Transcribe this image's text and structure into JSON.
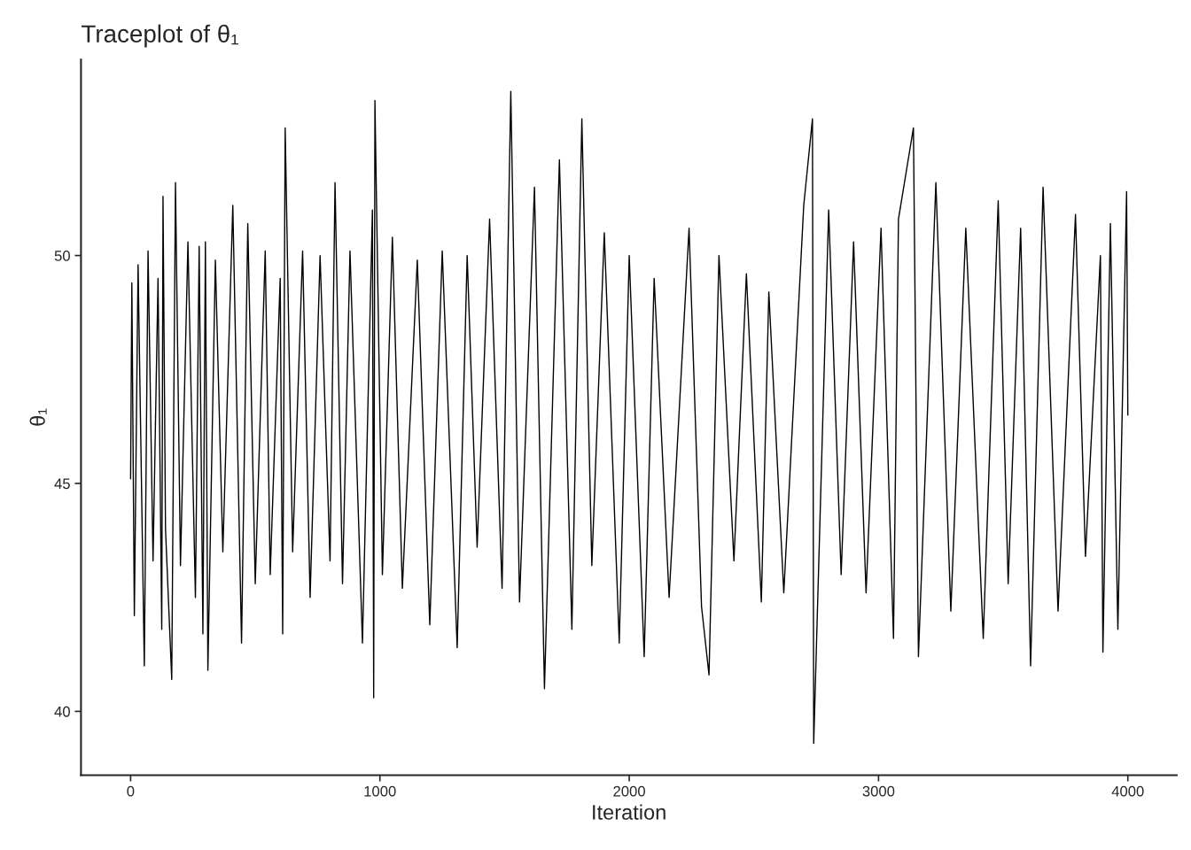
{
  "chart_data": {
    "type": "line",
    "title": "Traceplot of θ₁",
    "xlabel": "Iteration",
    "ylabel": "θ₁",
    "x": [
      0,
      5,
      15,
      30,
      55,
      70,
      90,
      110,
      125,
      130,
      140,
      165,
      180,
      200,
      230,
      260,
      275,
      290,
      300,
      310,
      340,
      370,
      410,
      445,
      470,
      500,
      540,
      560,
      600,
      610,
      620,
      650,
      690,
      720,
      760,
      800,
      820,
      850,
      880,
      930,
      970,
      975,
      980,
      1010,
      1050,
      1090,
      1150,
      1200,
      1250,
      1310,
      1350,
      1390,
      1440,
      1490,
      1525,
      1560,
      1620,
      1660,
      1720,
      1770,
      1810,
      1850,
      1900,
      1960,
      2000,
      2060,
      2100,
      2160,
      2240,
      2290,
      2320,
      2360,
      2420,
      2470,
      2530,
      2560,
      2620,
      2700,
      2735,
      2740,
      2800,
      2850,
      2900,
      2950,
      3010,
      3060,
      3080,
      3140,
      3160,
      3230,
      3290,
      3350,
      3420,
      3480,
      3520,
      3570,
      3610,
      3660,
      3720,
      3790,
      3830,
      3890,
      3900,
      3930,
      3960,
      3995,
      4000
    ],
    "series": [
      {
        "color": "#000000",
        "values": [
          45.1,
          49.4,
          42.1,
          49.8,
          41.0,
          50.1,
          43.3,
          49.5,
          41.8,
          51.3,
          44.0,
          40.7,
          51.6,
          43.2,
          50.3,
          42.5,
          50.2,
          41.7,
          50.3,
          40.9,
          49.9,
          43.5,
          51.1,
          41.5,
          50.7,
          42.8,
          50.1,
          43.0,
          49.5,
          41.7,
          52.8,
          43.5,
          50.1,
          42.5,
          50.0,
          43.3,
          51.6,
          42.8,
          50.1,
          41.5,
          51.0,
          40.3,
          53.4,
          43.0,
          50.4,
          42.7,
          49.9,
          41.9,
          50.1,
          41.4,
          50.0,
          43.6,
          50.8,
          42.7,
          53.6,
          42.4,
          51.5,
          40.5,
          52.1,
          41.8,
          53.0,
          43.2,
          50.5,
          41.5,
          50.0,
          41.2,
          49.5,
          42.5,
          50.6,
          42.3,
          40.8,
          50.0,
          43.3,
          49.6,
          42.4,
          49.2,
          42.6,
          51.1,
          53.0,
          39.3,
          51.0,
          43.0,
          50.3,
          42.6,
          50.6,
          41.6,
          50.8,
          52.8,
          41.2,
          51.6,
          42.2,
          50.6,
          41.6,
          51.2,
          42.8,
          50.6,
          41.0,
          51.5,
          42.2,
          50.9,
          43.4,
          50.0,
          41.3,
          50.7,
          41.8,
          51.4,
          46.5
        ]
      }
    ],
    "xlim": [
      -199,
      4196
    ],
    "ylim": [
      38.6,
      54.3
    ],
    "xticks": [
      0,
      1000,
      2000,
      3000,
      4000
    ],
    "yticks": [
      40,
      45,
      50
    ],
    "grid": false,
    "legend": false,
    "line_style": "solid",
    "marker": "none"
  }
}
